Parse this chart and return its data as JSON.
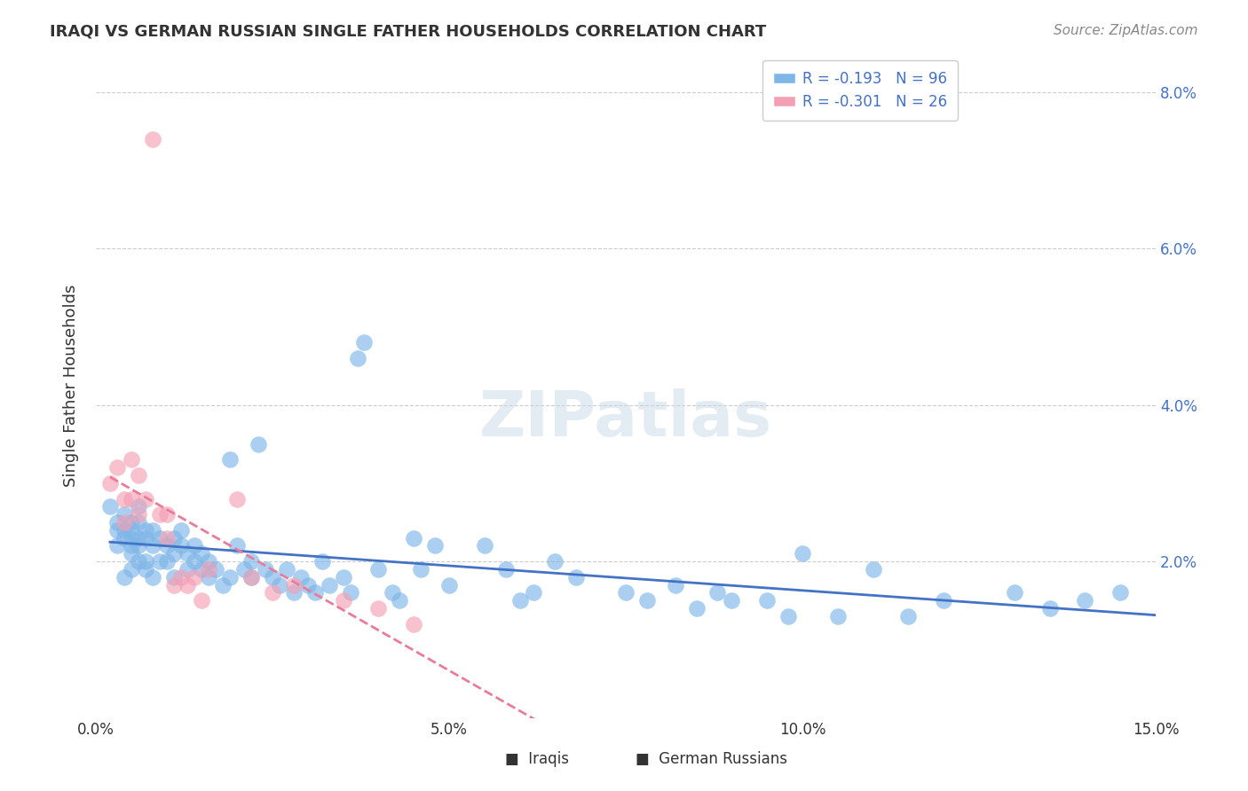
{
  "title": "IRAQI VS GERMAN RUSSIAN SINGLE FATHER HOUSEHOLDS CORRELATION CHART",
  "source": "Source: ZipAtlas.com",
  "xlabel": "",
  "ylabel": "Single Father Households",
  "watermark": "ZIPatlas",
  "xlim": [
    0.0,
    0.15
  ],
  "ylim": [
    0.0,
    0.085
  ],
  "xticks": [
    0.0,
    0.05,
    0.1,
    0.15
  ],
  "yticks": [
    0.0,
    0.02,
    0.04,
    0.06,
    0.08
  ],
  "xtick_labels": [
    "0.0%",
    "5.0%",
    "10.0%",
    "15.0%"
  ],
  "ytick_labels": [
    "",
    "2.0%",
    "4.0%",
    "6.0%",
    "8.0%"
  ],
  "iraqis_R": -0.193,
  "iraqis_N": 96,
  "german_russians_R": -0.301,
  "german_russians_N": 26,
  "iraqis_color": "#7EB6E8",
  "german_russians_color": "#F4A0B4",
  "iraqis_line_color": "#4472C4",
  "german_russians_line_color": "#E87C9A",
  "iraqis_x": [
    0.002,
    0.003,
    0.003,
    0.003,
    0.004,
    0.004,
    0.004,
    0.004,
    0.005,
    0.005,
    0.005,
    0.005,
    0.005,
    0.005,
    0.006,
    0.006,
    0.006,
    0.006,
    0.006,
    0.007,
    0.007,
    0.007,
    0.007,
    0.008,
    0.008,
    0.008,
    0.009,
    0.009,
    0.01,
    0.01,
    0.011,
    0.011,
    0.011,
    0.012,
    0.012,
    0.013,
    0.013,
    0.014,
    0.014,
    0.015,
    0.015,
    0.016,
    0.016,
    0.017,
    0.018,
    0.019,
    0.019,
    0.02,
    0.021,
    0.022,
    0.022,
    0.023,
    0.024,
    0.025,
    0.026,
    0.027,
    0.028,
    0.029,
    0.03,
    0.031,
    0.032,
    0.033,
    0.035,
    0.036,
    0.037,
    0.038,
    0.04,
    0.042,
    0.043,
    0.045,
    0.046,
    0.048,
    0.05,
    0.055,
    0.058,
    0.06,
    0.062,
    0.065,
    0.068,
    0.075,
    0.078,
    0.082,
    0.085,
    0.088,
    0.09,
    0.095,
    0.098,
    0.1,
    0.105,
    0.11,
    0.115,
    0.12,
    0.13,
    0.135,
    0.14,
    0.145
  ],
  "iraqis_y": [
    0.027,
    0.024,
    0.022,
    0.025,
    0.026,
    0.024,
    0.023,
    0.018,
    0.025,
    0.023,
    0.022,
    0.024,
    0.021,
    0.019,
    0.025,
    0.027,
    0.023,
    0.022,
    0.02,
    0.024,
    0.023,
    0.02,
    0.019,
    0.024,
    0.022,
    0.018,
    0.023,
    0.02,
    0.022,
    0.02,
    0.023,
    0.021,
    0.018,
    0.024,
    0.022,
    0.021,
    0.019,
    0.022,
    0.02,
    0.021,
    0.019,
    0.02,
    0.018,
    0.019,
    0.017,
    0.033,
    0.018,
    0.022,
    0.019,
    0.02,
    0.018,
    0.035,
    0.019,
    0.018,
    0.017,
    0.019,
    0.016,
    0.018,
    0.017,
    0.016,
    0.02,
    0.017,
    0.018,
    0.016,
    0.046,
    0.048,
    0.019,
    0.016,
    0.015,
    0.023,
    0.019,
    0.022,
    0.017,
    0.022,
    0.019,
    0.015,
    0.016,
    0.02,
    0.018,
    0.016,
    0.015,
    0.017,
    0.014,
    0.016,
    0.015,
    0.015,
    0.013,
    0.021,
    0.013,
    0.019,
    0.013,
    0.015,
    0.016,
    0.014,
    0.015,
    0.016
  ],
  "german_russians_x": [
    0.002,
    0.003,
    0.004,
    0.004,
    0.005,
    0.005,
    0.006,
    0.006,
    0.007,
    0.008,
    0.009,
    0.01,
    0.01,
    0.011,
    0.012,
    0.013,
    0.014,
    0.015,
    0.016,
    0.02,
    0.022,
    0.025,
    0.028,
    0.035,
    0.04,
    0.045
  ],
  "german_russians_y": [
    0.03,
    0.032,
    0.028,
    0.025,
    0.033,
    0.028,
    0.026,
    0.031,
    0.028,
    0.074,
    0.026,
    0.026,
    0.023,
    0.017,
    0.018,
    0.017,
    0.018,
    0.015,
    0.019,
    0.028,
    0.018,
    0.016,
    0.017,
    0.015,
    0.014,
    0.012
  ]
}
